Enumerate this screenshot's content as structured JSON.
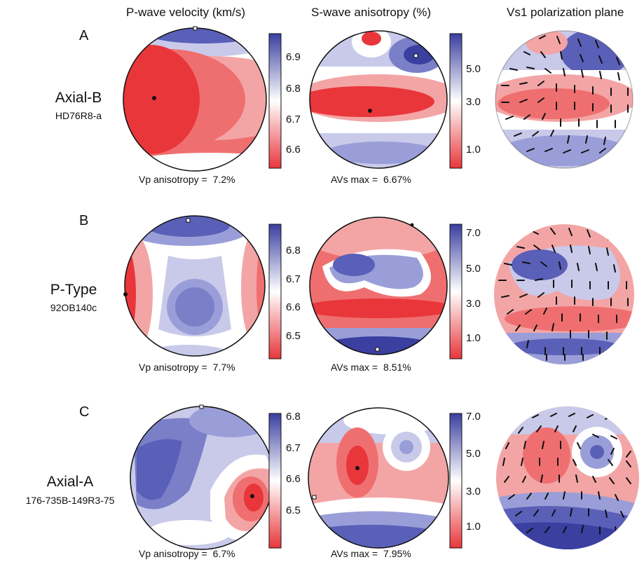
{
  "column_titles": [
    "P-wave velocity (km/s)",
    "S-wave anisotropy (%)",
    "Vs1 polarization plane"
  ],
  "rows": [
    {
      "letter": "A",
      "name": "Axial-B",
      "sample": "HD76R8-a",
      "vp_scale_ticks": [
        "6.9",
        "6.8",
        "6.7",
        "6.6"
      ],
      "avs_scale_ticks": [
        "5.0",
        "3.0",
        "1.0"
      ],
      "vp_caption_label": "Vp anisotropy =",
      "vp_caption_value": "7.2%",
      "avs_caption_label": "AVs max =",
      "avs_caption_value": "6.67%"
    },
    {
      "letter": "B",
      "name": "P-Type",
      "sample": "92OB140c",
      "vp_scale_ticks": [
        "6.8",
        "6.7",
        "6.6",
        "6.5"
      ],
      "avs_scale_ticks": [
        "7.0",
        "5.0",
        "3.0",
        "1.0"
      ],
      "vp_caption_label": "Vp anisotropy =",
      "vp_caption_value": "7.7%",
      "avs_caption_label": "AVs max =",
      "avs_caption_value": "8.51%"
    },
    {
      "letter": "C",
      "name": "Axial-A",
      "sample": "176-735B-149R3-75",
      "vp_scale_ticks": [
        "6.8",
        "6.7",
        "6.6",
        "6.5"
      ],
      "avs_scale_ticks": [
        "7.0",
        "5.0",
        "3.0",
        "1.0"
      ],
      "vp_caption_label": "Vp anisotropy =",
      "vp_caption_value": "6.7%",
      "avs_caption_label": "AVs max =",
      "avs_caption_value": "7.95%"
    }
  ],
  "colors": {
    "high": "#3a3fa0",
    "mid": "#ffffff",
    "low": "#e8363b",
    "outline": "#111111"
  }
}
